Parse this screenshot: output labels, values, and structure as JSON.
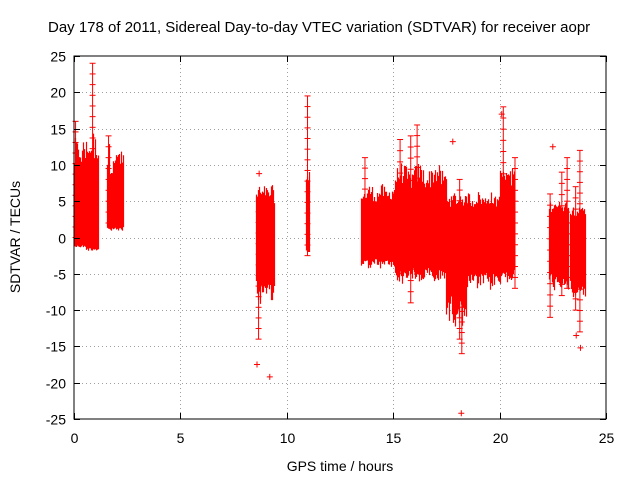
{
  "chart_data": {
    "type": "scatter",
    "title": "Day 178 of 2011, Sidereal Day-to-day VTEC variation (SDTVAR) for receiver aopr",
    "xlabel": "GPS time / hours",
    "ylabel": "SDTVAR / TECUs",
    "xlim": [
      0,
      25
    ],
    "ylim": [
      -25,
      25
    ],
    "xticks": [
      "0",
      "5",
      "10",
      "15",
      "20",
      "25"
    ],
    "yticks": [
      "25",
      "20",
      "15",
      "10",
      "5",
      "0",
      "-5",
      "-10",
      "-15",
      "-20",
      "-25"
    ],
    "grid": true,
    "marker": "+",
    "color": "#ff0000",
    "series": [
      {
        "name": "SDTVAR",
        "bands": [
          {
            "x0": 0.0,
            "x1": 0.55,
            "lo": -1,
            "hi": 14
          },
          {
            "x0": 0.55,
            "x1": 1.15,
            "lo": -1.5,
            "hi": 15
          },
          {
            "x0": 1.55,
            "x1": 2.3,
            "lo": 2,
            "hi": 13
          },
          {
            "x0": 8.55,
            "x1": 9.4,
            "lo": -9,
            "hi": 7
          },
          {
            "x0": 10.9,
            "x1": 11.05,
            "lo": -2,
            "hi": 10
          },
          {
            "x0": 13.5,
            "x1": 15.1,
            "lo": -4,
            "hi": 7
          },
          {
            "x0": 15.1,
            "x1": 17.5,
            "lo": -6,
            "hi": 10
          },
          {
            "x0": 17.5,
            "x1": 18.4,
            "lo": -12,
            "hi": 6
          },
          {
            "x0": 18.4,
            "x1": 20.0,
            "lo": -7,
            "hi": 6
          },
          {
            "x0": 20.0,
            "x1": 20.7,
            "lo": -6,
            "hi": 10
          },
          {
            "x0": 22.3,
            "x1": 23.2,
            "lo": -7,
            "hi": 5
          },
          {
            "x0": 23.3,
            "x1": 24.0,
            "lo": -9,
            "hi": 4
          }
        ],
        "spikes": [
          {
            "x": 0.85,
            "lo": -1,
            "hi": 24
          },
          {
            "x": 0.05,
            "lo": 0,
            "hi": 16
          },
          {
            "x": 1.6,
            "lo": 2,
            "hi": 14
          },
          {
            "x": 8.65,
            "lo": -14,
            "hi": 5
          },
          {
            "x": 10.95,
            "lo": -2.5,
            "hi": 19.5
          },
          {
            "x": 13.65,
            "lo": -2,
            "hi": 11
          },
          {
            "x": 15.3,
            "lo": -5,
            "hi": 13.5
          },
          {
            "x": 15.8,
            "lo": -9,
            "hi": 14
          },
          {
            "x": 16.1,
            "lo": -5,
            "hi": 15.5
          },
          {
            "x": 18.1,
            "lo": -14,
            "hi": 8
          },
          {
            "x": 18.2,
            "lo": -16,
            "hi": 0
          },
          {
            "x": 20.15,
            "lo": -2,
            "hi": 18
          },
          {
            "x": 20.7,
            "lo": -7,
            "hi": 11
          },
          {
            "x": 22.35,
            "lo": -11,
            "hi": 6
          },
          {
            "x": 22.9,
            "lo": -8,
            "hi": 9
          },
          {
            "x": 23.15,
            "lo": -7,
            "hi": 11
          },
          {
            "x": 23.55,
            "lo": -10,
            "hi": 7
          },
          {
            "x": 23.75,
            "lo": -13,
            "hi": 12
          }
        ],
        "points": [
          {
            "x": 8.6,
            "y": -17.5
          },
          {
            "x": 9.2,
            "y": -19.2
          },
          {
            "x": 18.2,
            "y": -24.2
          },
          {
            "x": 17.8,
            "y": 13.2
          },
          {
            "x": 22.5,
            "y": 12.5
          },
          {
            "x": 23.6,
            "y": -13.5
          },
          {
            "x": 23.8,
            "y": -15.2
          },
          {
            "x": 8.7,
            "y": 8.8
          },
          {
            "x": 20.1,
            "y": 17
          }
        ]
      }
    ]
  }
}
